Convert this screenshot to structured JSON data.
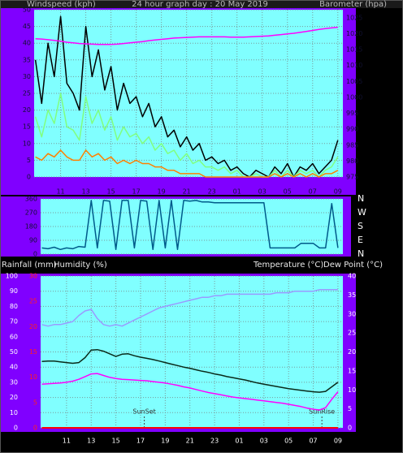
{
  "chart_data": [
    {
      "type": "line",
      "title": "24 hour graph day : 20 May 2019",
      "ylabel": "Windspeed (kph)",
      "y2label": "Barometer (hpa)",
      "x": [
        9,
        9.5,
        10,
        10.5,
        11,
        11.5,
        12,
        12.5,
        13,
        13.5,
        14,
        14.5,
        15,
        15.5,
        16,
        16.5,
        17,
        17.5,
        18,
        18.5,
        19,
        19.5,
        20,
        20.5,
        21,
        21.5,
        22,
        22.5,
        23,
        23.5,
        24,
        24.5,
        25,
        25.5,
        26,
        26.5,
        27,
        27.5,
        28,
        28.5,
        29,
        29.5,
        30,
        30.5,
        31,
        31.5,
        32,
        32.5,
        33
      ],
      "xlim": [
        8.9,
        33.4
      ],
      "xticks": [
        11,
        13,
        15,
        17,
        19,
        21,
        23,
        {
          "value": 25,
          "label": "01"
        },
        {
          "value": 27,
          "label": "03"
        },
        {
          "value": 29,
          "label": "05"
        },
        {
          "value": 31,
          "label": "07"
        },
        {
          "value": 33,
          "label": "09"
        }
      ],
      "ylim": [
        0,
        50
      ],
      "yticks": [
        0,
        5,
        10,
        15,
        20,
        25,
        30,
        35,
        40,
        45,
        50
      ],
      "y2lim": [
        975,
        1027.5
      ],
      "y2ticks": [
        975,
        980,
        985,
        990,
        995,
        1000,
        1005,
        1010,
        1015,
        1020,
        1025
      ],
      "grid": true,
      "series": [
        {
          "color": "#000000",
          "values": [
            35,
            22,
            40,
            30,
            48,
            28,
            25,
            20,
            45,
            30,
            38,
            26,
            33,
            20,
            28,
            22,
            24,
            18,
            22,
            15,
            18,
            12,
            14,
            9,
            12,
            8,
            10,
            5,
            6,
            4,
            5,
            2,
            3,
            1,
            0,
            2,
            1,
            0,
            3,
            1,
            4,
            0,
            3,
            2,
            4,
            1,
            3,
            5,
            11
          ]
        },
        {
          "color": "#80ff80",
          "values": [
            18,
            12,
            20,
            16,
            25,
            15,
            14,
            11,
            24,
            16,
            20,
            14,
            18,
            11,
            15,
            12,
            13,
            10,
            12,
            8,
            10,
            7,
            8,
            5,
            7,
            4,
            5,
            3,
            3,
            2,
            3,
            1,
            2,
            0,
            0,
            1,
            0,
            0,
            2,
            0,
            2,
            0,
            2,
            1,
            2,
            0,
            2,
            3,
            6
          ]
        },
        {
          "color": "#ff8000",
          "values": [
            6,
            5,
            7,
            6,
            8,
            6,
            5,
            5,
            8,
            6,
            7,
            5,
            6,
            4,
            5,
            4,
            5,
            4,
            4,
            3,
            3,
            2,
            2,
            1,
            1,
            1,
            1,
            0,
            0,
            0,
            0,
            0,
            0,
            0,
            0,
            0,
            0,
            0,
            1,
            0,
            1,
            0,
            1,
            0,
            1,
            0,
            1,
            1,
            2
          ]
        },
        {
          "color": "#ff00ff",
          "axis": "y2",
          "values": [
            1018.4,
            1018.3,
            1018.1,
            1017.9,
            1017.6,
            1017.3,
            1017.1,
            1016.9,
            1016.8,
            1016.7,
            1016.6,
            1016.6,
            1016.6,
            1016.7,
            1016.9,
            1017.1,
            1017.3,
            1017.5,
            1017.8,
            1018,
            1018.2,
            1018.4,
            1018.6,
            1018.7,
            1018.8,
            1018.9,
            1019,
            1019,
            1019,
            1019,
            1019,
            1018.9,
            1018.9,
            1018.9,
            1019,
            1019.1,
            1019.2,
            1019.3,
            1019.5,
            1019.7,
            1019.9,
            1020.1,
            1020.4,
            1020.7,
            1021,
            1021.3,
            1021.6,
            1021.8,
            1022
          ]
        }
      ]
    },
    {
      "type": "line",
      "x": [
        9,
        9.5,
        10,
        10.5,
        11,
        11.5,
        12,
        12.5,
        13,
        13.5,
        14,
        14.5,
        15,
        15.5,
        16,
        16.5,
        17,
        17.5,
        18,
        18.5,
        19,
        19.5,
        20,
        20.5,
        21,
        21.5,
        22,
        22.5,
        23,
        23.5,
        24,
        24.5,
        25,
        25.5,
        26,
        26.5,
        27,
        27.5,
        28,
        28.5,
        29,
        29.5,
        30,
        30.5,
        31,
        31.5,
        32,
        32.5,
        33
      ],
      "xlim": [
        8.9,
        33.4
      ],
      "ylim": [
        0,
        360
      ],
      "yticks": [
        0,
        90,
        180,
        270,
        360
      ],
      "y2ticks": [
        {
          "value": 360,
          "label": "N"
        },
        {
          "value": 270,
          "label": "W"
        },
        {
          "value": 180,
          "label": "S"
        },
        {
          "value": 90,
          "label": "E"
        },
        {
          "value": 0,
          "label": "N"
        }
      ],
      "grid": true,
      "series": [
        {
          "color": "#005a8a",
          "values": [
            40,
            35,
            45,
            30,
            40,
            35,
            50,
            45,
            350,
            40,
            350,
            345,
            30,
            350,
            350,
            40,
            350,
            345,
            30,
            350,
            40,
            350,
            30,
            350,
            345,
            350,
            340,
            340,
            335,
            335,
            335,
            335,
            335,
            335,
            335,
            335,
            335,
            40,
            40,
            40,
            40,
            40,
            70,
            70,
            70,
            40,
            40,
            330,
            40
          ]
        }
      ]
    },
    {
      "type": "line",
      "x": [
        9,
        9.5,
        10,
        10.5,
        11,
        11.5,
        12,
        12.5,
        13,
        13.5,
        14,
        14.5,
        15,
        15.5,
        16,
        16.5,
        17,
        17.5,
        18,
        18.5,
        19,
        19.5,
        20,
        20.5,
        21,
        21.5,
        22,
        22.5,
        23,
        23.5,
        24,
        24.5,
        25,
        25.5,
        26,
        26.5,
        27,
        27.5,
        28,
        28.5,
        29,
        29.5,
        30,
        30.5,
        31,
        31.5,
        32,
        32.5,
        33
      ],
      "xlim": [
        8.9,
        33.4
      ],
      "xticks": [
        11,
        13,
        15,
        17,
        19,
        21,
        23,
        {
          "value": 25,
          "label": "01"
        },
        {
          "value": 27,
          "label": "03"
        },
        {
          "value": 29,
          "label": "05"
        },
        {
          "value": 31,
          "label": "07"
        },
        {
          "value": 33,
          "label": "09"
        }
      ],
      "ylim": [
        0,
        100
      ],
      "yticks": [
        0,
        10,
        20,
        30,
        40,
        50,
        60,
        70,
        80,
        90,
        100
      ],
      "y2lim": [
        0,
        40
      ],
      "y2ticks": [
        0,
        5,
        10,
        15,
        20,
        25,
        30,
        35,
        40
      ],
      "y3lim": [
        0,
        30
      ],
      "y3ticks": [
        0,
        5,
        10,
        15,
        20,
        25,
        30
      ],
      "grid": true,
      "annotations": [
        {
          "text": "SunSet",
          "x": 17.3
        },
        {
          "text": "SunRise",
          "x": 31.7
        }
      ],
      "series": [
        {
          "name": "Rainfall (mm)",
          "color": "#ff0000",
          "axis": "y3",
          "values": [
            0,
            0,
            0,
            0,
            0,
            0,
            0,
            0,
            0,
            0,
            0,
            0,
            0,
            0,
            0,
            0,
            0,
            0,
            0,
            0,
            0,
            0,
            0,
            0,
            0,
            0,
            0,
            0,
            0,
            0,
            0,
            0,
            0,
            0,
            0,
            0,
            0,
            0,
            0,
            0,
            0,
            0,
            0,
            0,
            0,
            0,
            0,
            0,
            0
          ]
        },
        {
          "name": "Humidity (%)",
          "color": "#9a9aff",
          "values": [
            68,
            67,
            68,
            68,
            69,
            70,
            74,
            77,
            78,
            72,
            68,
            67,
            68,
            67,
            69,
            71,
            73,
            75,
            77,
            79,
            80,
            81,
            82,
            83,
            84,
            85,
            86,
            86,
            87,
            87,
            88,
            88,
            88,
            88,
            88,
            88,
            88,
            88,
            89,
            89,
            89,
            90,
            90,
            90,
            90,
            91,
            91,
            91,
            91
          ]
        },
        {
          "name": "Temperature (°C)",
          "color": "#0a2a1a",
          "axis": "y2",
          "values": [
            17.5,
            17.6,
            17.6,
            17.4,
            17.2,
            17,
            17.2,
            18.5,
            20.5,
            20.6,
            20.2,
            19.5,
            18.8,
            19.4,
            19.5,
            19,
            18.6,
            18.3,
            18,
            17.6,
            17.2,
            16.8,
            16.4,
            16,
            15.7,
            15.3,
            14.9,
            14.6,
            14.2,
            13.9,
            13.5,
            13.2,
            12.9,
            12.6,
            12.2,
            11.8,
            11.5,
            11.2,
            10.9,
            10.6,
            10.3,
            10.1,
            9.9,
            9.7,
            9.5,
            9.4,
            9.6,
            10.8,
            12
          ]
        },
        {
          "name": "Dew Point (°C)",
          "color": "#ff00ff",
          "axis": "y2",
          "values": [
            11.5,
            11.6,
            11.7,
            11.8,
            12,
            12.3,
            12.8,
            13.5,
            14.2,
            14.3,
            13.8,
            13.3,
            13,
            12.8,
            12.7,
            12.6,
            12.5,
            12.4,
            12.2,
            12,
            11.8,
            11.5,
            11.2,
            10.8,
            10.5,
            10.1,
            9.7,
            9.3,
            9,
            8.7,
            8.4,
            8.1,
            7.9,
            7.7,
            7.5,
            7.3,
            7.1,
            6.9,
            6.7,
            6.5,
            6.2,
            5.9,
            5.6,
            5.2,
            4.9,
            4.7,
            5.3,
            7.5,
            9.5
          ]
        }
      ]
    }
  ]
}
